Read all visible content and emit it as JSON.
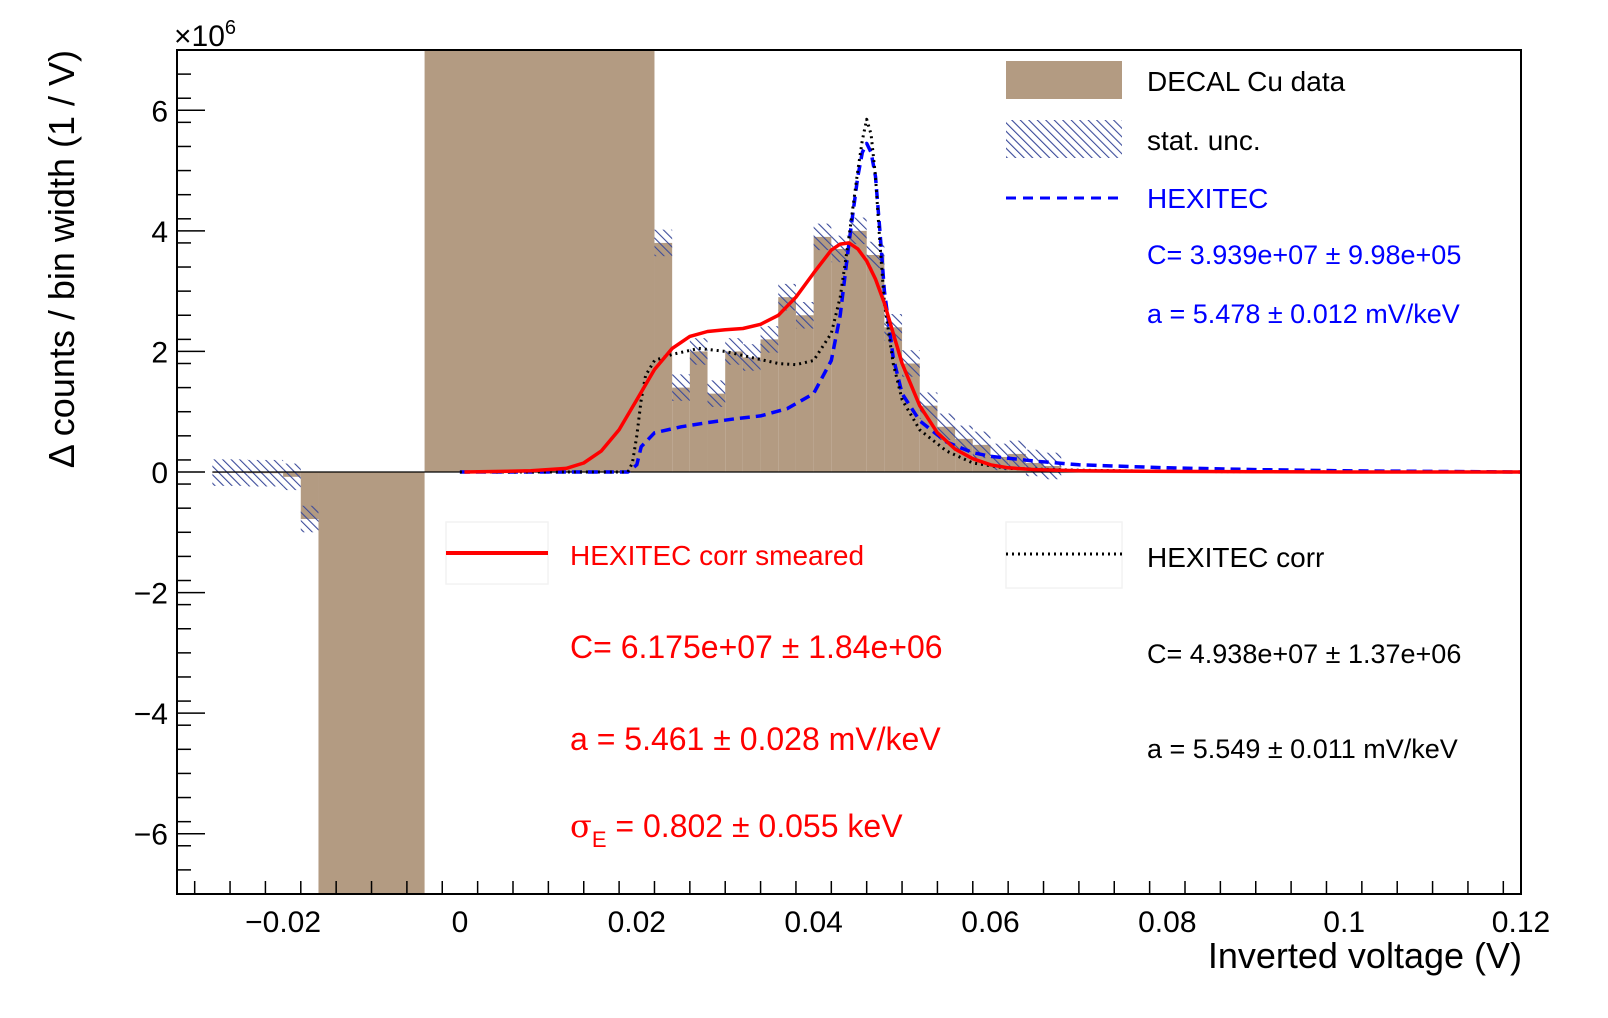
{
  "chart_data": {
    "type": "bar",
    "xlabel": "Inverted voltage (V)",
    "ylabel": "Δ counts / bin width (1 / V)",
    "y_multiplier": "×10",
    "y_multiplier_exp": "6",
    "xlim": [
      -0.032,
      0.12
    ],
    "ylim": [
      -7,
      7
    ],
    "x_ticks": [
      -0.02,
      0,
      0.02,
      0.04,
      0.06,
      0.08,
      0.1,
      0.12
    ],
    "x_tick_labels": [
      "−0.02",
      "0",
      "0.02",
      "0.04",
      "0.06",
      "0.08",
      "0.1",
      "0.12"
    ],
    "y_ticks": [
      -6,
      -4,
      -2,
      0,
      2,
      4,
      6
    ],
    "y_tick_labels": [
      "−6",
      "−4",
      "−2",
      "0",
      "2",
      "4",
      "6"
    ],
    "histogram": {
      "name": "DECAL Cu data",
      "color": "#b39b82",
      "bins": [
        {
          "x0": -0.028,
          "x1": -0.024,
          "y": -0.01
        },
        {
          "x0": -0.024,
          "x1": -0.02,
          "y": -0.02
        },
        {
          "x0": -0.02,
          "x1": -0.018,
          "y": -0.08
        },
        {
          "x0": -0.018,
          "x1": -0.016,
          "y": -0.78
        },
        {
          "x0": -0.016,
          "x1": -0.004,
          "y": -7.5
        },
        {
          "x0": -0.004,
          "x1": 0.022,
          "y": 7.5
        },
        {
          "x0": 0.022,
          "x1": 0.024,
          "y": 3.8
        },
        {
          "x0": 0.024,
          "x1": 0.026,
          "y": 1.4
        },
        {
          "x0": 0.026,
          "x1": 0.028,
          "y": 2.0
        },
        {
          "x0": 0.028,
          "x1": 0.03,
          "y": 1.3
        },
        {
          "x0": 0.03,
          "x1": 0.032,
          "y": 2.0
        },
        {
          "x0": 0.032,
          "x1": 0.034,
          "y": 1.9
        },
        {
          "x0": 0.034,
          "x1": 0.036,
          "y": 2.2
        },
        {
          "x0": 0.036,
          "x1": 0.038,
          "y": 2.9
        },
        {
          "x0": 0.038,
          "x1": 0.04,
          "y": 2.6
        },
        {
          "x0": 0.04,
          "x1": 0.042,
          "y": 3.9
        },
        {
          "x0": 0.042,
          "x1": 0.044,
          "y": 3.7
        },
        {
          "x0": 0.044,
          "x1": 0.046,
          "y": 4.0
        },
        {
          "x0": 0.046,
          "x1": 0.048,
          "y": 3.6
        },
        {
          "x0": 0.048,
          "x1": 0.05,
          "y": 2.4
        },
        {
          "x0": 0.05,
          "x1": 0.052,
          "y": 1.8
        },
        {
          "x0": 0.052,
          "x1": 0.054,
          "y": 1.1
        },
        {
          "x0": 0.054,
          "x1": 0.056,
          "y": 0.75
        },
        {
          "x0": 0.056,
          "x1": 0.058,
          "y": 0.55
        },
        {
          "x0": 0.058,
          "x1": 0.06,
          "y": 0.45
        },
        {
          "x0": 0.06,
          "x1": 0.062,
          "y": 0.25
        },
        {
          "x0": 0.062,
          "x1": 0.064,
          "y": 0.3
        },
        {
          "x0": 0.064,
          "x1": 0.066,
          "y": 0.15
        },
        {
          "x0": 0.066,
          "x1": 0.068,
          "y": 0.1
        }
      ]
    },
    "stat_unc": {
      "name": "stat. unc.",
      "color": "#3a4a9a",
      "half_width": 0.22
    },
    "series": [
      {
        "name": "HEXITEC",
        "color": "#0000ff",
        "style": "dashed",
        "x": [
          0.0,
          0.01,
          0.019,
          0.02,
          0.0205,
          0.022,
          0.025,
          0.028,
          0.031,
          0.034,
          0.037,
          0.04,
          0.042,
          0.043,
          0.044,
          0.045,
          0.0455,
          0.046,
          0.0465,
          0.047,
          0.0475,
          0.048,
          0.049,
          0.05,
          0.052,
          0.055,
          0.058,
          0.06,
          0.065,
          0.07,
          0.08,
          0.09,
          0.1,
          0.11,
          0.12
        ],
        "y": [
          0,
          0,
          0,
          0.12,
          0.42,
          0.65,
          0.75,
          0.82,
          0.88,
          0.93,
          1.05,
          1.3,
          1.85,
          2.6,
          3.8,
          4.9,
          5.3,
          5.45,
          5.3,
          4.9,
          4.0,
          3.0,
          1.9,
          1.3,
          0.85,
          0.5,
          0.32,
          0.26,
          0.18,
          0.12,
          0.07,
          0.04,
          0.02,
          0.01,
          0.0
        ]
      },
      {
        "name": "HEXITEC corr",
        "color": "#000000",
        "style": "dotted",
        "x": [
          0.0,
          0.01,
          0.019,
          0.0195,
          0.02,
          0.0205,
          0.021,
          0.022,
          0.024,
          0.027,
          0.03,
          0.033,
          0.036,
          0.038,
          0.04,
          0.042,
          0.043,
          0.044,
          0.045,
          0.0455,
          0.046,
          0.0465,
          0.047,
          0.0475,
          0.048,
          0.049,
          0.05,
          0.052,
          0.055,
          0.058,
          0.062,
          0.07,
          0.08,
          0.09,
          0.1,
          0.11,
          0.12
        ],
        "y": [
          0,
          0,
          0,
          0.15,
          0.6,
          1.2,
          1.6,
          1.85,
          1.95,
          2.05,
          2.0,
          1.9,
          1.8,
          1.78,
          1.85,
          2.3,
          2.9,
          3.9,
          5.0,
          5.5,
          5.85,
          5.6,
          4.9,
          3.8,
          2.8,
          1.8,
          1.2,
          0.7,
          0.35,
          0.15,
          0.06,
          0.03,
          0.01,
          0.005,
          0.0,
          0.0,
          0.0
        ]
      },
      {
        "name": "HEXITEC corr smeared",
        "color": "#ff0000",
        "style": "solid",
        "x": [
          0.0005,
          0.008,
          0.012,
          0.014,
          0.016,
          0.018,
          0.02,
          0.022,
          0.024,
          0.026,
          0.028,
          0.03,
          0.032,
          0.034,
          0.036,
          0.038,
          0.04,
          0.042,
          0.043,
          0.044,
          0.045,
          0.046,
          0.047,
          0.048,
          0.049,
          0.05,
          0.052,
          0.054,
          0.056,
          0.058,
          0.06,
          0.062,
          0.065,
          0.07,
          0.08,
          0.09,
          0.1,
          0.11,
          0.12
        ],
        "y": [
          0,
          0.02,
          0.06,
          0.15,
          0.35,
          0.7,
          1.2,
          1.7,
          2.05,
          2.25,
          2.33,
          2.36,
          2.38,
          2.45,
          2.6,
          2.9,
          3.3,
          3.68,
          3.78,
          3.8,
          3.7,
          3.5,
          3.2,
          2.8,
          2.3,
          1.8,
          1.1,
          0.65,
          0.38,
          0.22,
          0.12,
          0.07,
          0.04,
          0.02,
          0.01,
          0.005,
          0.0,
          0.0,
          0.0
        ]
      }
    ],
    "legend": [
      {
        "label": "DECAL Cu data",
        "kind": "fill",
        "placement": "top-right"
      },
      {
        "label": "stat. unc.",
        "kind": "hatch",
        "placement": "top-right"
      },
      {
        "label": "HEXITEC",
        "kind": "line",
        "placement": "top-right"
      },
      {
        "label": "HEXITEC corr smeared",
        "kind": "line",
        "placement": "lower-middle"
      },
      {
        "label": "HEXITEC corr",
        "kind": "line",
        "placement": "lower-right"
      }
    ],
    "fit_results": {
      "hexitec": {
        "C": "C= 3.939e+07 ± 9.98e+05",
        "a": "a = 5.478 ± 0.012 mV/keV",
        "color": "#0000ff"
      },
      "hexitec_corr": {
        "C": "C= 4.938e+07 ± 1.37e+06",
        "a": "a = 5.549 ± 0.011 mV/keV",
        "color": "#000000"
      },
      "hexitec_corr_smeared": {
        "C": "C= 6.175e+07 ± 1.84e+06",
        "a": "a = 5.461 ± 0.028 mV/keV",
        "sigma_symbol": "σ",
        "sigma_sub": "E",
        "sigma_value": " = 0.802 ± 0.055 keV",
        "color": "#ff0000"
      }
    }
  }
}
